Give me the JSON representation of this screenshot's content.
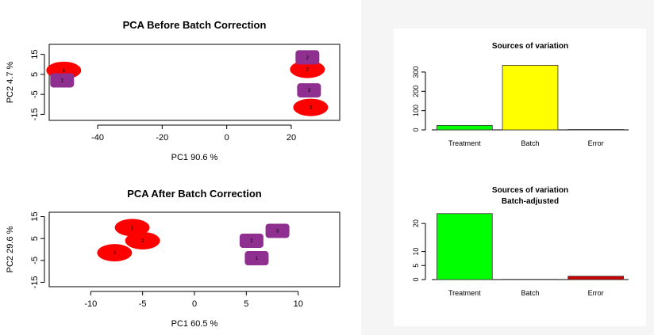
{
  "chart_data": [
    {
      "type": "scatter",
      "title": "PCA Before Batch Correction",
      "xlabel": "PC1 90.6 %",
      "ylabel": "PC2 4.7 %",
      "xlim": [
        -55,
        35
      ],
      "ylim": [
        -18,
        20
      ],
      "xticks": [
        -40,
        -20,
        0,
        20
      ],
      "yticks": [
        -15,
        -5,
        5,
        15
      ],
      "series": [
        {
          "shape": "ellipse",
          "color": "#ff0000",
          "points": [
            {
              "x": -50.5,
              "y": 7,
              "label": "1"
            },
            {
              "x": 25,
              "y": 7.5,
              "label": "2"
            },
            {
              "x": 26,
              "y": -11.5,
              "label": "3"
            }
          ]
        },
        {
          "shape": "rounded-rect",
          "color": "#8f2f8f",
          "points": [
            {
              "x": -51,
              "y": 2,
              "label": "1"
            },
            {
              "x": 25,
              "y": 13.5,
              "label": "2"
            },
            {
              "x": 25.5,
              "y": -3,
              "label": "3"
            }
          ]
        }
      ]
    },
    {
      "type": "scatter",
      "title": "PCA After Batch Correction",
      "xlabel": "PC1 60.5 %",
      "ylabel": "PC2 29.6 %",
      "xlim": [
        -14,
        14
      ],
      "ylim": [
        -17,
        17
      ],
      "xticks": [
        -10,
        -5,
        0,
        5,
        10
      ],
      "yticks": [
        -15,
        -5,
        5,
        15
      ],
      "series": [
        {
          "shape": "ellipse",
          "color": "#ff0000",
          "points": [
            {
              "x": -6,
              "y": 10,
              "label": "1"
            },
            {
              "x": -5,
              "y": 4,
              "label": "2"
            },
            {
              "x": -7.7,
              "y": -1.5,
              "label": "3"
            }
          ]
        },
        {
          "shape": "rounded-rect",
          "color": "#8f2f8f",
          "points": [
            {
              "x": 6,
              "y": -4,
              "label": "1"
            },
            {
              "x": 5.5,
              "y": 4,
              "label": "2"
            },
            {
              "x": 8,
              "y": 8.5,
              "label": "3"
            }
          ]
        }
      ]
    },
    {
      "type": "bar",
      "title": "Sources of variation",
      "categories": [
        "Treatment",
        "Batch",
        "Error"
      ],
      "values": [
        23,
        335,
        2
      ],
      "colors": [
        "#00ff00",
        "#ffff00",
        "#ff0000"
      ],
      "ylim": [
        0,
        345
      ],
      "yticks": [
        0,
        100,
        200,
        300
      ]
    },
    {
      "type": "bar",
      "title": "Sources of variation",
      "subtitle": "Batch-adjusted",
      "categories": [
        "Treatment",
        "Batch",
        "Error"
      ],
      "values": [
        23.5,
        0.1,
        1.2
      ],
      "colors": [
        "#00ff00",
        "#ffff00",
        "#cc0000"
      ],
      "ylim": [
        0,
        24
      ],
      "yticks": [
        0,
        5,
        10,
        20
      ]
    }
  ]
}
